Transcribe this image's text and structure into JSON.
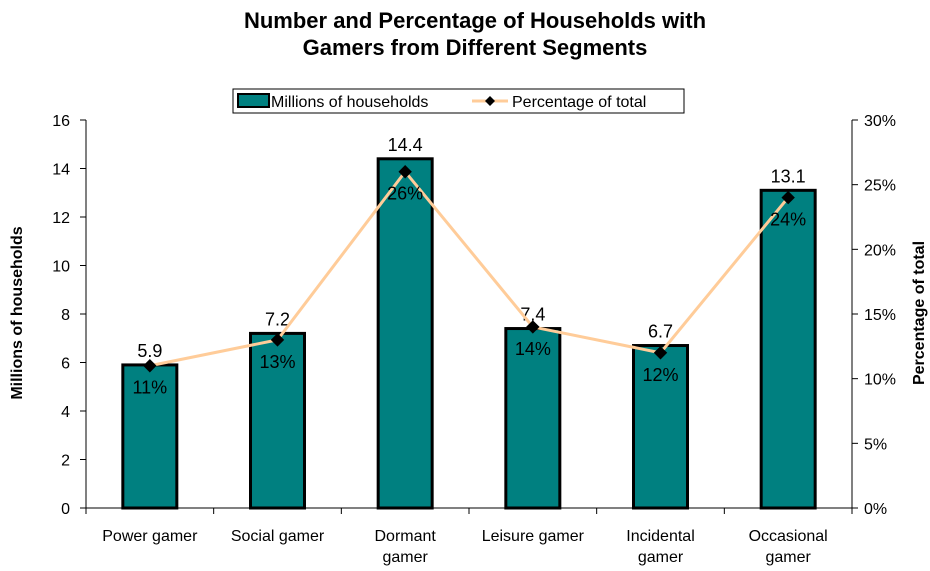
{
  "chart_data": {
    "type": "bar",
    "title_lines": [
      "Number and Percentage of Households with",
      "Gamers from Different Segments"
    ],
    "categories": [
      [
        "Power gamer"
      ],
      [
        "Social gamer"
      ],
      [
        "Dormant",
        "gamer"
      ],
      [
        "Leisure gamer"
      ],
      [
        "Incidental",
        "gamer"
      ],
      [
        "Occasional",
        "gamer"
      ]
    ],
    "series": [
      {
        "name": "Millions of households",
        "type": "bar",
        "axis": "left",
        "values": [
          5.9,
          7.2,
          14.4,
          7.4,
          6.7,
          13.1
        ],
        "labels": [
          "5.9",
          "7.2",
          "14.4",
          "7.4",
          "6.7",
          "13.1"
        ],
        "color": "#008080"
      },
      {
        "name": "Percentage of total",
        "type": "line",
        "axis": "right",
        "values": [
          11,
          13,
          26,
          14,
          12,
          24
        ],
        "labels": [
          "11%",
          "13%",
          "26%",
          "14%",
          "12%",
          "24%"
        ],
        "line_color": "#FFCC99",
        "marker_color": "#000000"
      }
    ],
    "ylabel": "Millions of households",
    "y2label": "Percentage of total",
    "ylim": [
      0,
      16
    ],
    "y_ticks": [
      "0",
      "2",
      "4",
      "6",
      "8",
      "10",
      "12",
      "14",
      "16"
    ],
    "y2lim": [
      0,
      30
    ],
    "y2_ticks": [
      "0%",
      "5%",
      "10%",
      "15%",
      "20%",
      "25%",
      "30%"
    ],
    "legend_position": "top",
    "grid": false
  }
}
